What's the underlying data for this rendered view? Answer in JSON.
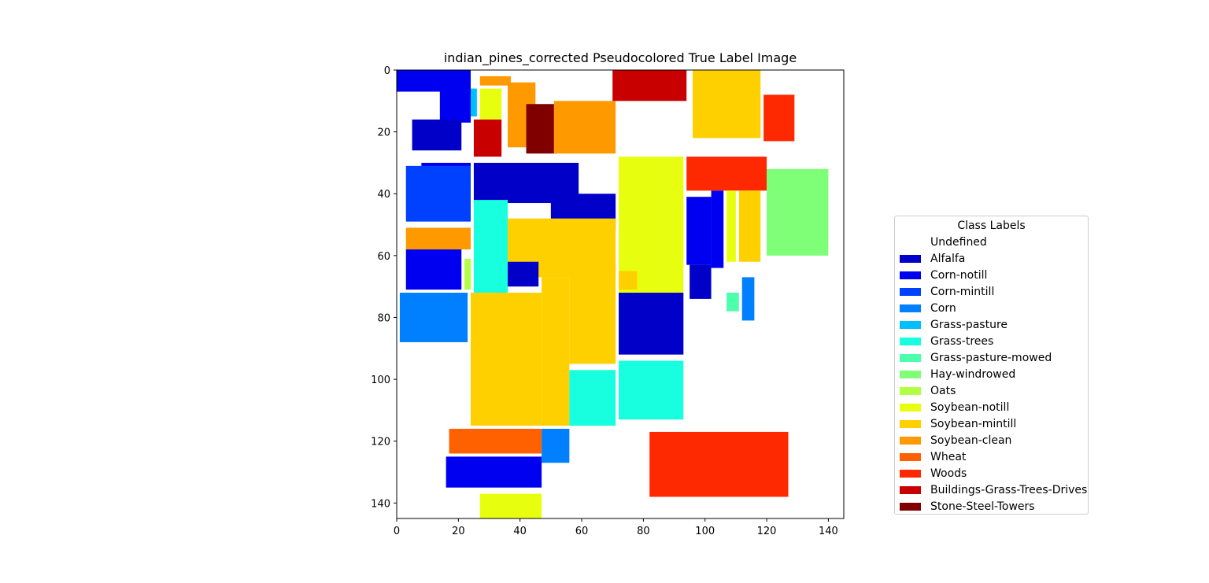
{
  "chart_data": {
    "type": "heatmap",
    "title": "indian_pines_corrected Pseudocolored True Label Image",
    "xlabel": "",
    "ylabel": "",
    "xlim": [
      0,
      145
    ],
    "ylim": [
      145,
      0
    ],
    "x_ticks": [
      "0",
      "20",
      "40",
      "60",
      "80",
      "100",
      "120",
      "140"
    ],
    "y_ticks": [
      "0",
      "20",
      "40",
      "60",
      "80",
      "100",
      "120",
      "140"
    ],
    "grid": false,
    "legend_position": "right",
    "legend_title": "Class Labels",
    "classes": [
      {
        "label": "Undefined",
        "color": "#ffffff"
      },
      {
        "label": "Alfalfa",
        "color": "#0000c8"
      },
      {
        "label": "Corn-notill",
        "color": "#0000f0"
      },
      {
        "label": "Corn-mintill",
        "color": "#0040ff"
      },
      {
        "label": "Corn",
        "color": "#0080ff"
      },
      {
        "label": "Grass-pasture",
        "color": "#00bfff"
      },
      {
        "label": "Grass-trees",
        "color": "#17ffdf"
      },
      {
        "label": "Grass-pasture-mowed",
        "color": "#4bffab"
      },
      {
        "label": "Hay-windrowed",
        "color": "#7fff78"
      },
      {
        "label": "Oats",
        "color": "#b3ff44"
      },
      {
        "label": "Soybean-notill",
        "color": "#e7ff0f"
      },
      {
        "label": "Soybean-mintill",
        "color": "#ffd000"
      },
      {
        "label": "Soybean-clean",
        "color": "#ff9900"
      },
      {
        "label": "Wheat",
        "color": "#ff6000"
      },
      {
        "label": "Woods",
        "color": "#ff2900"
      },
      {
        "label": "Buildings-Grass-Trees-Drives",
        "color": "#c80000"
      },
      {
        "label": "Stone-Steel-Towers",
        "color": "#800000"
      }
    ],
    "regions": [
      {
        "c": 2,
        "x": [
          0,
          18
        ],
        "y": [
          0,
          7
        ]
      },
      {
        "c": 2,
        "x": [
          14,
          24
        ],
        "y": [
          0,
          17
        ]
      },
      {
        "c": 1,
        "x": [
          5,
          21
        ],
        "y": [
          16,
          26
        ]
      },
      {
        "c": 2,
        "x": [
          8,
          24
        ],
        "y": [
          30,
          35
        ]
      },
      {
        "c": 3,
        "x": [
          3,
          24
        ],
        "y": [
          31,
          49
        ]
      },
      {
        "c": 12,
        "x": [
          3,
          24
        ],
        "y": [
          51,
          58
        ]
      },
      {
        "c": 2,
        "x": [
          3,
          21
        ],
        "y": [
          58,
          71
        ]
      },
      {
        "c": 9,
        "x": [
          22,
          24
        ],
        "y": [
          61,
          71
        ]
      },
      {
        "c": 4,
        "x": [
          1,
          23
        ],
        "y": [
          72,
          88
        ]
      },
      {
        "c": 5,
        "x": [
          24,
          26
        ],
        "y": [
          6,
          15
        ]
      },
      {
        "c": 10,
        "x": [
          27,
          34
        ],
        "y": [
          6,
          16
        ]
      },
      {
        "c": 12,
        "x": [
          27,
          37
        ],
        "y": [
          2,
          5
        ]
      },
      {
        "c": 15,
        "x": [
          25,
          34
        ],
        "y": [
          16,
          28
        ]
      },
      {
        "c": 12,
        "x": [
          36,
          45
        ],
        "y": [
          4,
          25
        ]
      },
      {
        "c": 16,
        "x": [
          42,
          52
        ],
        "y": [
          11,
          27
        ]
      },
      {
        "c": 12,
        "x": [
          51,
          71
        ],
        "y": [
          10,
          27
        ]
      },
      {
        "c": 1,
        "x": [
          25,
          59
        ],
        "y": [
          30,
          43
        ]
      },
      {
        "c": 1,
        "x": [
          50,
          71
        ],
        "y": [
          40,
          52
        ]
      },
      {
        "c": 6,
        "x": [
          25,
          36
        ],
        "y": [
          42,
          72
        ]
      },
      {
        "c": 11,
        "x": [
          36,
          71
        ],
        "y": [
          48,
          67
        ]
      },
      {
        "c": 1,
        "x": [
          36,
          46
        ],
        "y": [
          62,
          70
        ]
      },
      {
        "c": 11,
        "x": [
          24,
          47
        ],
        "y": [
          72,
          115
        ]
      },
      {
        "c": 11,
        "x": [
          47,
          56
        ],
        "y": [
          67,
          115
        ]
      },
      {
        "c": 11,
        "x": [
          56,
          71
        ],
        "y": [
          62,
          95
        ]
      },
      {
        "c": 6,
        "x": [
          56,
          71
        ],
        "y": [
          97,
          115
        ]
      },
      {
        "c": 13,
        "x": [
          17,
          47
        ],
        "y": [
          116,
          124
        ]
      },
      {
        "c": 2,
        "x": [
          16,
          47
        ],
        "y": [
          125,
          135
        ]
      },
      {
        "c": 10,
        "x": [
          27,
          47
        ],
        "y": [
          137,
          145
        ]
      },
      {
        "c": 4,
        "x": [
          47,
          56
        ],
        "y": [
          116,
          127
        ]
      },
      {
        "c": 15,
        "x": [
          70,
          94
        ],
        "y": [
          0,
          10
        ]
      },
      {
        "c": 11,
        "x": [
          96,
          118
        ],
        "y": [
          0,
          22
        ]
      },
      {
        "c": 14,
        "x": [
          119,
          129
        ],
        "y": [
          8,
          23
        ]
      },
      {
        "c": 10,
        "x": [
          72,
          93
        ],
        "y": [
          28,
          73
        ]
      },
      {
        "c": 14,
        "x": [
          94,
          120
        ],
        "y": [
          28,
          39
        ]
      },
      {
        "c": 2,
        "x": [
          94,
          102
        ],
        "y": [
          41,
          63
        ]
      },
      {
        "c": 2,
        "x": [
          102,
          106
        ],
        "y": [
          39,
          64
        ]
      },
      {
        "c": 10,
        "x": [
          107,
          110
        ],
        "y": [
          39,
          62
        ]
      },
      {
        "c": 11,
        "x": [
          111,
          118
        ],
        "y": [
          39,
          62
        ]
      },
      {
        "c": 8,
        "x": [
          120,
          140
        ],
        "y": [
          32,
          60
        ]
      },
      {
        "c": 1,
        "x": [
          95,
          102
        ],
        "y": [
          63,
          74
        ]
      },
      {
        "c": 11,
        "x": [
          72,
          78
        ],
        "y": [
          65,
          71
        ]
      },
      {
        "c": 1,
        "x": [
          72,
          93
        ],
        "y": [
          72,
          92
        ]
      },
      {
        "c": 7,
        "x": [
          107,
          111
        ],
        "y": [
          72,
          78
        ]
      },
      {
        "c": 4,
        "x": [
          112,
          116
        ],
        "y": [
          67,
          81
        ]
      },
      {
        "c": 6,
        "x": [
          72,
          93
        ],
        "y": [
          94,
          113
        ]
      },
      {
        "c": 14,
        "x": [
          82,
          127
        ],
        "y": [
          117,
          138
        ]
      }
    ]
  }
}
